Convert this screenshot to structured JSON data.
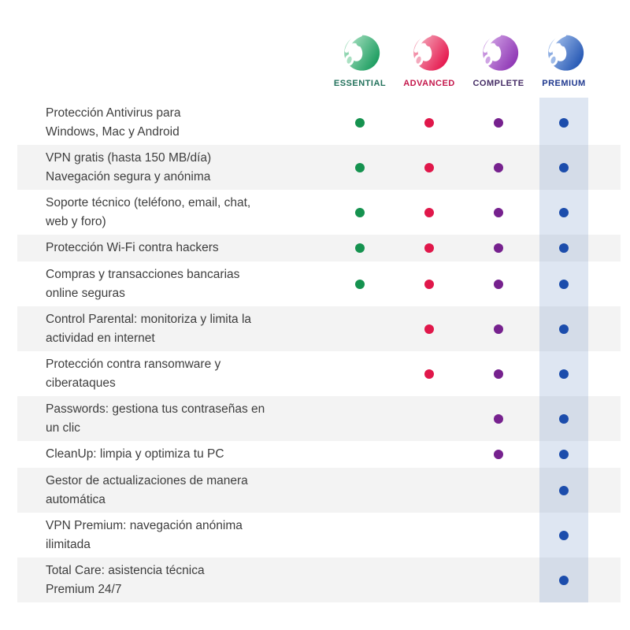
{
  "plans": [
    {
      "id": "essential",
      "label": "ESSENTIAL",
      "label_color": "#23725C",
      "dot_color": "#15924F",
      "logo_light": "#AFE4C6",
      "logo_dark": "#179A5C",
      "logo_leaf": "#A9E0C2"
    },
    {
      "id": "advanced",
      "label": "ADVANCED",
      "label_color": "#C4174B",
      "dot_color": "#E0174A",
      "logo_light": "#F5AFC0",
      "logo_dark": "#E5134A",
      "logo_leaf": "#F3A8BC"
    },
    {
      "id": "complete",
      "label": "COMPLETE",
      "label_color": "#462D66",
      "dot_color": "#76218E",
      "logo_light": "#D5A9E8",
      "logo_dark": "#8C33B3",
      "logo_leaf": "#CFA4E4"
    },
    {
      "id": "premium",
      "label": "PREMIUM",
      "label_color": "#20398F",
      "dot_color": "#1C4DAC",
      "logo_light": "#A9C4EE",
      "logo_dark": "#2154B2",
      "logo_leaf": "#9FBBE8"
    }
  ],
  "features": [
    {
      "label": "Protección Antivirus para\nWindows, Mac y Android",
      "plans": [
        true,
        true,
        true,
        true
      ]
    },
    {
      "label": "VPN gratis (hasta 150 MB/día)\nNavegación segura y anónima",
      "plans": [
        true,
        true,
        true,
        true
      ]
    },
    {
      "label": "Soporte técnico (teléfono, email, chat,\nweb y foro)",
      "plans": [
        true,
        true,
        true,
        true
      ]
    },
    {
      "label": "Protección Wi-Fi contra hackers",
      "plans": [
        true,
        true,
        true,
        true
      ]
    },
    {
      "label": "Compras y transacciones bancarias\nonline seguras",
      "plans": [
        true,
        true,
        true,
        true
      ]
    },
    {
      "label": "Control Parental: monitoriza y limita la\nactividad en internet",
      "plans": [
        false,
        true,
        true,
        true
      ]
    },
    {
      "label": "Protección contra ransomware y\nciberataques",
      "plans": [
        false,
        true,
        true,
        true
      ]
    },
    {
      "label": "Passwords: gestiona tus contraseñas en\nun clic",
      "plans": [
        false,
        false,
        true,
        true
      ]
    },
    {
      "label": "CleanUp: limpia y optimiza tu PC",
      "plans": [
        false,
        false,
        true,
        true
      ]
    },
    {
      "label": "Gestor de actualizaciones de manera\nautomática",
      "plans": [
        false,
        false,
        false,
        true
      ]
    },
    {
      "label": "VPN Premium: navegación anónima\nilimitada",
      "plans": [
        false,
        false,
        false,
        true
      ]
    },
    {
      "label": "Total Care: asistencia técnica\nPremium 24/7",
      "plans": [
        false,
        false,
        false,
        true
      ]
    }
  ],
  "highlight": {
    "column": "premium",
    "color": "rgba(62,105,178,0.17)"
  },
  "stripe_color": "#f3f3f3"
}
